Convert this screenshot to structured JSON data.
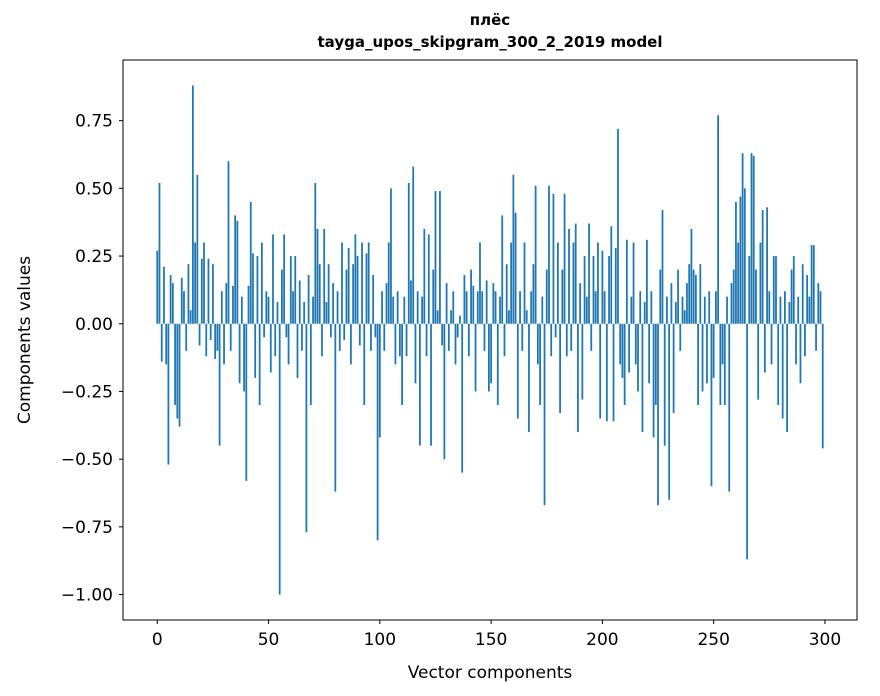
{
  "figure": {
    "title_line1": "плёс",
    "title_line2": "tayga_upos_skipgram_300_2_2019 model",
    "xlabel": "Vector components",
    "ylabel": "Components values"
  },
  "chart_data": {
    "type": "bar",
    "title": "плёс",
    "subtitle": "tayga_upos_skipgram_300_2_2019 model",
    "xlabel": "Vector components",
    "ylabel": "Components values",
    "bar_color": "#1f77b4",
    "spine_color": "#000000",
    "grid": false,
    "legend": false,
    "xlim": [
      -15.4,
      314.4
    ],
    "ylim": [
      -1.094,
      0.974
    ],
    "xticks": [
      0,
      50,
      100,
      150,
      200,
      250,
      300
    ],
    "xtick_labels": [
      "0",
      "50",
      "100",
      "150",
      "200",
      "250",
      "300"
    ],
    "yticks": [
      -1.0,
      -0.75,
      -0.5,
      -0.25,
      0.0,
      0.25,
      0.5,
      0.75
    ],
    "ytick_labels": [
      "−1.00",
      "−0.75",
      "−0.50",
      "−0.25",
      "0.00",
      "0.25",
      "0.50",
      "0.75"
    ],
    "bar_width": 0.8,
    "values": [
      0.27,
      0.52,
      -0.14,
      0.21,
      -0.15,
      -0.52,
      0.18,
      0.15,
      -0.3,
      -0.35,
      -0.38,
      0.17,
      0.12,
      -0.1,
      0.22,
      0.05,
      0.88,
      0.3,
      0.55,
      -0.08,
      0.24,
      0.3,
      -0.12,
      0.24,
      -0.06,
      0.22,
      -0.13,
      -0.1,
      -0.45,
      0.12,
      -0.15,
      0.15,
      0.6,
      -0.1,
      0.14,
      0.4,
      0.38,
      -0.22,
      0.1,
      -0.25,
      -0.58,
      0.14,
      0.45,
      0.26,
      -0.2,
      0.25,
      -0.3,
      0.3,
      -0.05,
      0.12,
      0.1,
      -0.18,
      0.33,
      -0.12,
      0.08,
      -1.0,
      0.2,
      0.33,
      -0.05,
      -0.15,
      0.25,
      0.12,
      0.25,
      -0.2,
      0.16,
      -0.1,
      0.08,
      -0.77,
      0.18,
      -0.3,
      0.1,
      0.52,
      0.35,
      0.22,
      -0.12,
      0.35,
      0.08,
      0.22,
      -0.05,
      0.15,
      -0.62,
      0.12,
      -0.1,
      0.3,
      -0.06,
      0.2,
      0.28,
      -0.15,
      0.22,
      0.33,
      0.25,
      -0.08,
      0.3,
      -0.3,
      0.26,
      0.3,
      -0.1,
      0.18,
      -0.05,
      -0.8,
      -0.42,
      0.12,
      -0.1,
      0.15,
      0.3,
      0.5,
      0.1,
      -0.15,
      0.12,
      -0.12,
      -0.3,
      0.1,
      -0.12,
      0.52,
      0.16,
      0.58,
      -0.22,
      0.12,
      -0.45,
      0.1,
      0.35,
      -0.12,
      0.33,
      -0.45,
      0.2,
      0.49,
      0.05,
      0.49,
      -0.08,
      -0.5,
      0.15,
      -0.1,
      0.05,
      0.12,
      -0.15,
      -0.05,
      0.03,
      -0.55,
      0.18,
      0.12,
      -0.12,
      0.2,
      0.14,
      -0.25,
      0.12,
      0.3,
      0.12,
      -0.1,
      0.16,
      -0.25,
      -0.22,
      0.15,
      0.12,
      -0.3,
      0.1,
      0.4,
      -0.12,
      0.22,
      0.05,
      0.3,
      0.55,
      0.41,
      -0.35,
      0.12,
      -0.1,
      0.3,
      0.05,
      -0.4,
      0.12,
      0.22,
      0.51,
      -0.15,
      -0.3,
      0.1,
      -0.67,
      0.2,
      0.51,
      -0.12,
      0.48,
      -0.05,
      0.3,
      -0.33,
      0.2,
      0.48,
      -0.12,
      0.35,
      -0.1,
      0.3,
      0.37,
      -0.4,
      0.15,
      -0.28,
      0.25,
      0.1,
      0.37,
      -0.1,
      0.25,
      0.12,
      0.3,
      -0.35,
      0.27,
      0.12,
      -0.36,
      0.25,
      0.36,
      -0.36,
      0.28,
      0.72,
      -0.15,
      -0.2,
      -0.3,
      0.31,
      -0.18,
      0.1,
      0.3,
      -0.15,
      -0.25,
      0.12,
      -0.4,
      0.08,
      0.31,
      -0.22,
      0.12,
      -0.42,
      -0.3,
      -0.67,
      0.2,
      0.42,
      -0.45,
      0.1,
      -0.65,
      0.15,
      -0.33,
      0.08,
      0.2,
      -0.1,
      0.1,
      0.05,
      0.15,
      0.22,
      0.35,
      0.2,
      0.18,
      -0.3,
      0.22,
      -0.25,
      0.1,
      -0.22,
      0.12,
      -0.6,
      -0.2,
      0.12,
      0.77,
      -0.3,
      -0.15,
      -0.3,
      0.1,
      -0.62,
      0.15,
      0.2,
      0.45,
      0.3,
      0.47,
      0.63,
      0.5,
      -0.87,
      0.25,
      0.63,
      0.62,
      0.2,
      -0.28,
      0.3,
      0.42,
      -0.18,
      0.43,
      0.12,
      -0.15,
      0.25,
      0.25,
      -0.3,
      0.1,
      -0.35,
      0.12,
      -0.4,
      0.08,
      0.2,
      0.25,
      -0.15,
      0.1,
      -0.22,
      0.22,
      -0.12,
      0.18,
      0.1,
      0.29,
      0.29,
      -0.1,
      0.15,
      0.12,
      -0.46
    ]
  }
}
